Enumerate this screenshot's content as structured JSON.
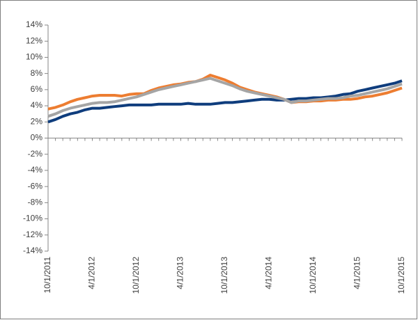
{
  "chart_data": {
    "type": "line",
    "categories": [
      "10/1/2011",
      null,
      null,
      null,
      null,
      null,
      "4/1/2012",
      null,
      null,
      null,
      null,
      null,
      "10/1/2012",
      null,
      null,
      null,
      null,
      null,
      "4/1/2013",
      null,
      null,
      null,
      null,
      null,
      "10/1/2013",
      null,
      null,
      null,
      null,
      null,
      "4/1/2014",
      null,
      null,
      null,
      null,
      null,
      "10/1/2014",
      null,
      null,
      null,
      null,
      null,
      "4/1/2015",
      null,
      null,
      null,
      null,
      null,
      "10/1/2015"
    ],
    "series": [
      {
        "color": "#0f3d7d",
        "values": [
          2.0,
          2.3,
          2.7,
          3.0,
          3.2,
          3.5,
          3.7,
          3.7,
          3.8,
          3.9,
          4.0,
          4.1,
          4.1,
          4.1,
          4.1,
          4.2,
          4.2,
          4.2,
          4.2,
          4.3,
          4.2,
          4.2,
          4.2,
          4.3,
          4.4,
          4.4,
          4.5,
          4.6,
          4.7,
          4.8,
          4.8,
          4.7,
          4.7,
          4.8,
          4.9,
          4.9,
          5.0,
          5.0,
          5.1,
          5.2,
          5.4,
          5.5,
          5.8,
          6.0,
          6.2,
          6.4,
          6.6,
          6.8,
          7.1
        ]
      },
      {
        "color": "#ed7d31",
        "values": [
          3.6,
          3.8,
          4.1,
          4.5,
          4.8,
          5.0,
          5.2,
          5.3,
          5.3,
          5.3,
          5.2,
          5.4,
          5.5,
          5.5,
          5.9,
          6.2,
          6.4,
          6.6,
          6.7,
          6.9,
          7.0,
          7.3,
          7.8,
          7.5,
          7.2,
          6.8,
          6.3,
          6.0,
          5.7,
          5.5,
          5.3,
          5.1,
          4.8,
          4.4,
          4.5,
          4.5,
          4.6,
          4.6,
          4.7,
          4.7,
          4.8,
          4.8,
          4.9,
          5.1,
          5.2,
          5.4,
          5.6,
          5.9,
          6.2
        ]
      },
      {
        "color": "#a5a5a5",
        "values": [
          2.7,
          3.0,
          3.4,
          3.7,
          3.9,
          4.1,
          4.3,
          4.4,
          4.4,
          4.5,
          4.7,
          4.9,
          5.1,
          5.4,
          5.7,
          6.0,
          6.2,
          6.4,
          6.6,
          6.8,
          7.0,
          7.2,
          7.4,
          7.1,
          6.8,
          6.5,
          6.1,
          5.8,
          5.6,
          5.4,
          5.2,
          5.0,
          4.8,
          4.4,
          4.6,
          4.6,
          4.7,
          4.8,
          4.9,
          4.9,
          5.0,
          5.2,
          5.3,
          5.5,
          5.7,
          5.9,
          6.1,
          6.4,
          6.7
        ]
      }
    ],
    "ylim": [
      -14,
      14
    ],
    "yticks": [
      {
        "value": -14,
        "label": "-14%"
      },
      {
        "value": -12,
        "label": "-12%"
      },
      {
        "value": -10,
        "label": "-10%"
      },
      {
        "value": -8,
        "label": "-8%"
      },
      {
        "value": -6,
        "label": "-6%"
      },
      {
        "value": -4,
        "label": "-4%"
      },
      {
        "value": -2,
        "label": "-2%"
      },
      {
        "value": 0,
        "label": "0%"
      },
      {
        "value": 2,
        "label": "2%"
      },
      {
        "value": 4,
        "label": "4%"
      },
      {
        "value": 6,
        "label": "6%"
      },
      {
        "value": 8,
        "label": "8%"
      },
      {
        "value": 10,
        "label": "10%"
      },
      {
        "value": 12,
        "label": "12%"
      },
      {
        "value": 14,
        "label": "14%"
      }
    ],
    "grid": false
  }
}
